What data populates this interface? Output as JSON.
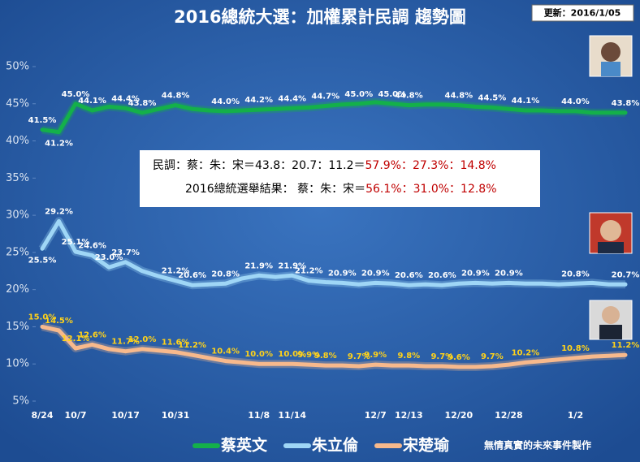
{
  "chart_data": {
    "type": "line",
    "title": "2016總統大選：加權累計民調 趨勢圖",
    "update_label": "更新：2016/1/05",
    "credit": "無情真實的未來事件製作",
    "annotation": {
      "line1": [
        "民調：蔡：朱：宋＝43.8：20.7：11.2＝",
        "57.9%：27.3%：14.8%"
      ],
      "line2": [
        "2016總統選舉結果： 蔡：朱：宋＝",
        "56.1%：31.0%：12.8%"
      ]
    },
    "categories": [
      "8/24",
      null,
      "10/7",
      null,
      null,
      "10/17",
      null,
      null,
      "10/31",
      null,
      null,
      null,
      null,
      "11/8",
      null,
      "11/14",
      null,
      null,
      null,
      null,
      "12/7",
      null,
      "12/13",
      null,
      null,
      "12/20",
      null,
      null,
      "12/28",
      null,
      null,
      null,
      "1/2",
      null,
      null,
      null
    ],
    "ylim": [
      5,
      50
    ],
    "yticks": [
      {
        "value": 5,
        "label": "5%"
      },
      {
        "value": 10,
        "label": "10%"
      },
      {
        "value": 15,
        "label": "15%"
      },
      {
        "value": 20,
        "label": "20%"
      },
      {
        "value": 25,
        "label": "25%"
      },
      {
        "value": 30,
        "label": "30%"
      },
      {
        "value": 35,
        "label": "35%"
      },
      {
        "value": 40,
        "label": "40%"
      },
      {
        "value": 45,
        "label": "45%"
      },
      {
        "value": 50,
        "label": "50%"
      }
    ],
    "series": [
      {
        "name": "蔡英文",
        "color": "#14b04a",
        "label_color": "#ffffff",
        "values": [
          41.5,
          41.2,
          45.0,
          44.1,
          44.6,
          44.4,
          43.8,
          44.3,
          44.8,
          44.3,
          44.1,
          44.0,
          44.1,
          44.2,
          44.3,
          44.4,
          44.5,
          44.7,
          44.9,
          45.0,
          45.2,
          45.0,
          44.8,
          44.9,
          44.9,
          44.8,
          44.6,
          44.5,
          44.3,
          44.1,
          44.1,
          44.0,
          44.0,
          43.8,
          43.8,
          43.8
        ],
        "value_labels": [
          "41.5%",
          "41.2%",
          "45.0%",
          "44.1%",
          null,
          "44.4%",
          "43.8%",
          null,
          "44.8%",
          null,
          null,
          "44.0%",
          null,
          "44.2%",
          null,
          "44.4%",
          null,
          "44.7%",
          null,
          "45.0%",
          null,
          "45.0%",
          "44.8%",
          null,
          null,
          "44.8%",
          null,
          "44.5%",
          null,
          "44.1%",
          null,
          null,
          "44.0%",
          null,
          null,
          "43.8%"
        ]
      },
      {
        "name": "朱立倫",
        "color": "#9fd6f6",
        "label_color": "#ffffff",
        "values": [
          25.5,
          29.2,
          25.1,
          24.6,
          23.0,
          23.7,
          22.5,
          21.8,
          21.2,
          20.6,
          20.7,
          20.8,
          21.5,
          21.9,
          21.7,
          21.9,
          21.2,
          21.0,
          20.9,
          20.7,
          20.9,
          20.8,
          20.6,
          20.7,
          20.6,
          20.8,
          20.9,
          20.8,
          20.9,
          20.8,
          20.8,
          20.7,
          20.8,
          20.9,
          20.7,
          20.7
        ],
        "value_labels": [
          "25.5%",
          "29.2%",
          "25.1%",
          "24.6%",
          "23.0%",
          "23.7%",
          null,
          null,
          "21.2%",
          "20.6%",
          null,
          "20.8%",
          null,
          "21.9%",
          null,
          "21.9%",
          "21.2%",
          null,
          "20.9%",
          null,
          "20.9%",
          null,
          "20.6%",
          null,
          "20.6%",
          null,
          "20.9%",
          null,
          "20.9%",
          null,
          null,
          null,
          "20.8%",
          null,
          null,
          "20.7%"
        ]
      },
      {
        "name": "宋楚瑜",
        "color": "#f7b98c",
        "label_color": "#ffd21a",
        "values": [
          15.0,
          14.5,
          12.1,
          12.6,
          12.0,
          11.7,
          12.0,
          11.8,
          11.6,
          11.2,
          10.8,
          10.4,
          10.2,
          10.0,
          10.0,
          10.0,
          9.9,
          9.8,
          9.8,
          9.7,
          9.9,
          9.8,
          9.8,
          9.7,
          9.7,
          9.6,
          9.6,
          9.7,
          9.9,
          10.2,
          10.4,
          10.6,
          10.8,
          11.0,
          11.1,
          11.2
        ],
        "value_labels": [
          "15.0%",
          "14.5%",
          "12.1%",
          "12.6%",
          null,
          "11.7%",
          "12.0%",
          null,
          "11.6%",
          "11.2%",
          null,
          "10.4%",
          null,
          "10.0%",
          null,
          "10.0%",
          "9.9%",
          "9.8%",
          null,
          "9.7%",
          "9.9%",
          null,
          "9.8%",
          null,
          "9.7%",
          "9.6%",
          null,
          "9.7%",
          null,
          "10.2%",
          null,
          null,
          "10.8%",
          null,
          null,
          "11.2%"
        ]
      }
    ]
  }
}
